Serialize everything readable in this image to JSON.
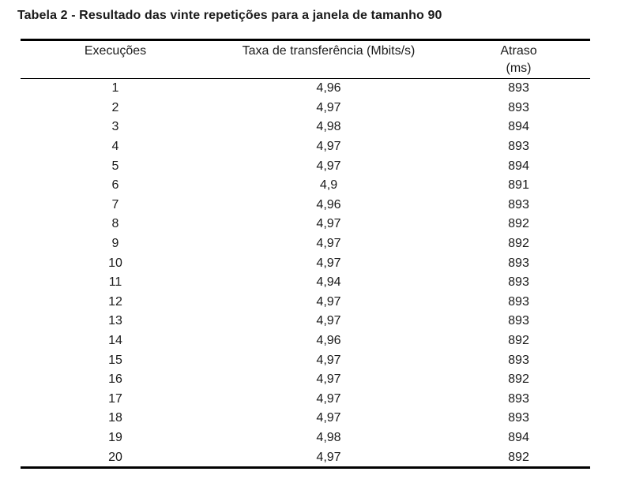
{
  "caption": "Tabela 2 - Resultado das vinte repetições para a janela de tamanho 90",
  "headers": {
    "col1": "Execuções",
    "col2": "Taxa de transferência (Mbits/s)",
    "col3_line1": "Atraso",
    "col3_line2": "(ms)"
  },
  "rows": [
    {
      "exec": "1",
      "taxa": "4,96",
      "atraso": "893"
    },
    {
      "exec": "2",
      "taxa": "4,97",
      "atraso": "893"
    },
    {
      "exec": "3",
      "taxa": "4,98",
      "atraso": "894"
    },
    {
      "exec": "4",
      "taxa": "4,97",
      "atraso": "893"
    },
    {
      "exec": "5",
      "taxa": "4,97",
      "atraso": "894"
    },
    {
      "exec": "6",
      "taxa": "4,9",
      "atraso": "891"
    },
    {
      "exec": "7",
      "taxa": "4,96",
      "atraso": "893"
    },
    {
      "exec": "8",
      "taxa": "4,97",
      "atraso": "892"
    },
    {
      "exec": "9",
      "taxa": "4,97",
      "atraso": "892"
    },
    {
      "exec": "10",
      "taxa": "4,97",
      "atraso": "893"
    },
    {
      "exec": "11",
      "taxa": "4,94",
      "atraso": "893"
    },
    {
      "exec": "12",
      "taxa": "4,97",
      "atraso": "893"
    },
    {
      "exec": "13",
      "taxa": "4,97",
      "atraso": "893"
    },
    {
      "exec": "14",
      "taxa": "4,96",
      "atraso": "892"
    },
    {
      "exec": "15",
      "taxa": "4,97",
      "atraso": "893"
    },
    {
      "exec": "16",
      "taxa": "4,97",
      "atraso": "892"
    },
    {
      "exec": "17",
      "taxa": "4,97",
      "atraso": "893"
    },
    {
      "exec": "18",
      "taxa": "4,97",
      "atraso": "893"
    },
    {
      "exec": "19",
      "taxa": "4,98",
      "atraso": "894"
    },
    {
      "exec": "20",
      "taxa": "4,97",
      "atraso": "892"
    }
  ]
}
